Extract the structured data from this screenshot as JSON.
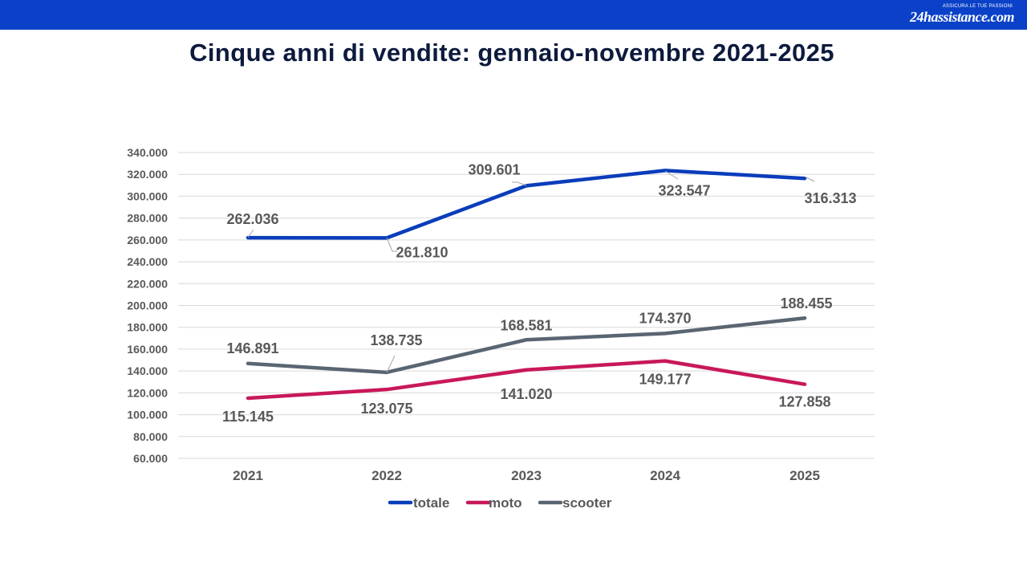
{
  "header": {
    "logo_tagline": "ASSICURA LE TUE PASSIONI",
    "logo_text": "24hassistance.com",
    "bar_color": "#0a41c8"
  },
  "title": "Cinque anni di vendite: gennaio-novembre 2021-2025",
  "chart_data": {
    "type": "line",
    "categories": [
      "2021",
      "2022",
      "2023",
      "2024",
      "2025"
    ],
    "ylim": [
      60000,
      340000
    ],
    "ytick_step": 20000,
    "ytick_labels": [
      "60.000",
      "80.000",
      "100.000",
      "120.000",
      "140.000",
      "160.000",
      "180.000",
      "200.000",
      "220.000",
      "240.000",
      "260.000",
      "280.000",
      "300.000",
      "320.000",
      "340.000"
    ],
    "grid": true,
    "legend_position": "bottom",
    "series": [
      {
        "name": "totale",
        "color": "#0a3dbb",
        "values": [
          262036,
          261810,
          309601,
          323547,
          316313
        ],
        "labels": [
          "262.036",
          "261.810",
          "309.601",
          "323.547",
          "316.313"
        ]
      },
      {
        "name": "moto",
        "color": "#c8185a",
        "values": [
          115145,
          123075,
          141020,
          149177,
          127858
        ],
        "labels": [
          "115.145",
          "123.075",
          "141.020",
          "149.177",
          "127.858"
        ]
      },
      {
        "name": "scooter",
        "color": "#5a6572",
        "values": [
          146891,
          138735,
          168581,
          174370,
          188455
        ],
        "labels": [
          "146.891",
          "138.735",
          "168.581",
          "174.370",
          "188.455"
        ]
      }
    ]
  }
}
